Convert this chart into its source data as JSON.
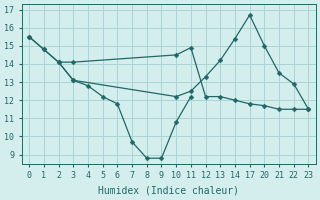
{
  "xlabel": "Humidex (Indice chaleur)",
  "background_color": "#d4eeee",
  "grid_color": "#aad4d4",
  "line_color": "#226666",
  "series": [
    {
      "x": [
        0,
        1,
        2,
        3,
        4,
        5,
        6,
        7,
        8,
        9,
        10,
        11
      ],
      "y": [
        15.5,
        14.8,
        14.1,
        13.1,
        12.8,
        12.2,
        11.8,
        9.7,
        8.8,
        8.8,
        10.8,
        12.2
      ]
    },
    {
      "x": [
        0,
        1,
        2,
        3,
        10,
        11,
        12,
        13,
        14,
        17,
        20,
        21,
        22,
        23
      ],
      "y": [
        15.5,
        14.8,
        14.1,
        13.1,
        12.2,
        12.5,
        13.3,
        14.2,
        15.4,
        16.7,
        15.0,
        13.5,
        12.9,
        11.5
      ]
    },
    {
      "x": [
        2,
        3,
        10,
        11,
        12,
        13,
        14,
        17,
        20,
        21,
        22,
        23
      ],
      "y": [
        14.1,
        14.1,
        14.5,
        14.9,
        12.2,
        12.2,
        12.0,
        11.8,
        11.7,
        11.5,
        11.5,
        11.5
      ]
    }
  ],
  "xlim": [
    -0.3,
    23.5
  ],
  "ylim": [
    8.5,
    17.3
  ],
  "yticks": [
    9,
    10,
    11,
    12,
    13,
    14,
    15,
    16,
    17
  ],
  "xticks": [
    0,
    1,
    2,
    3,
    4,
    5,
    6,
    7,
    8,
    9,
    10,
    11,
    12,
    13,
    14,
    17,
    20,
    21,
    22,
    23
  ],
  "xtick_labels": [
    "0",
    "1",
    "2",
    "3",
    "4",
    "5",
    "6",
    "7",
    "8",
    "9",
    "10",
    "11",
    "12",
    "13",
    "14",
    "17",
    "20",
    "21",
    "22",
    "23"
  ]
}
